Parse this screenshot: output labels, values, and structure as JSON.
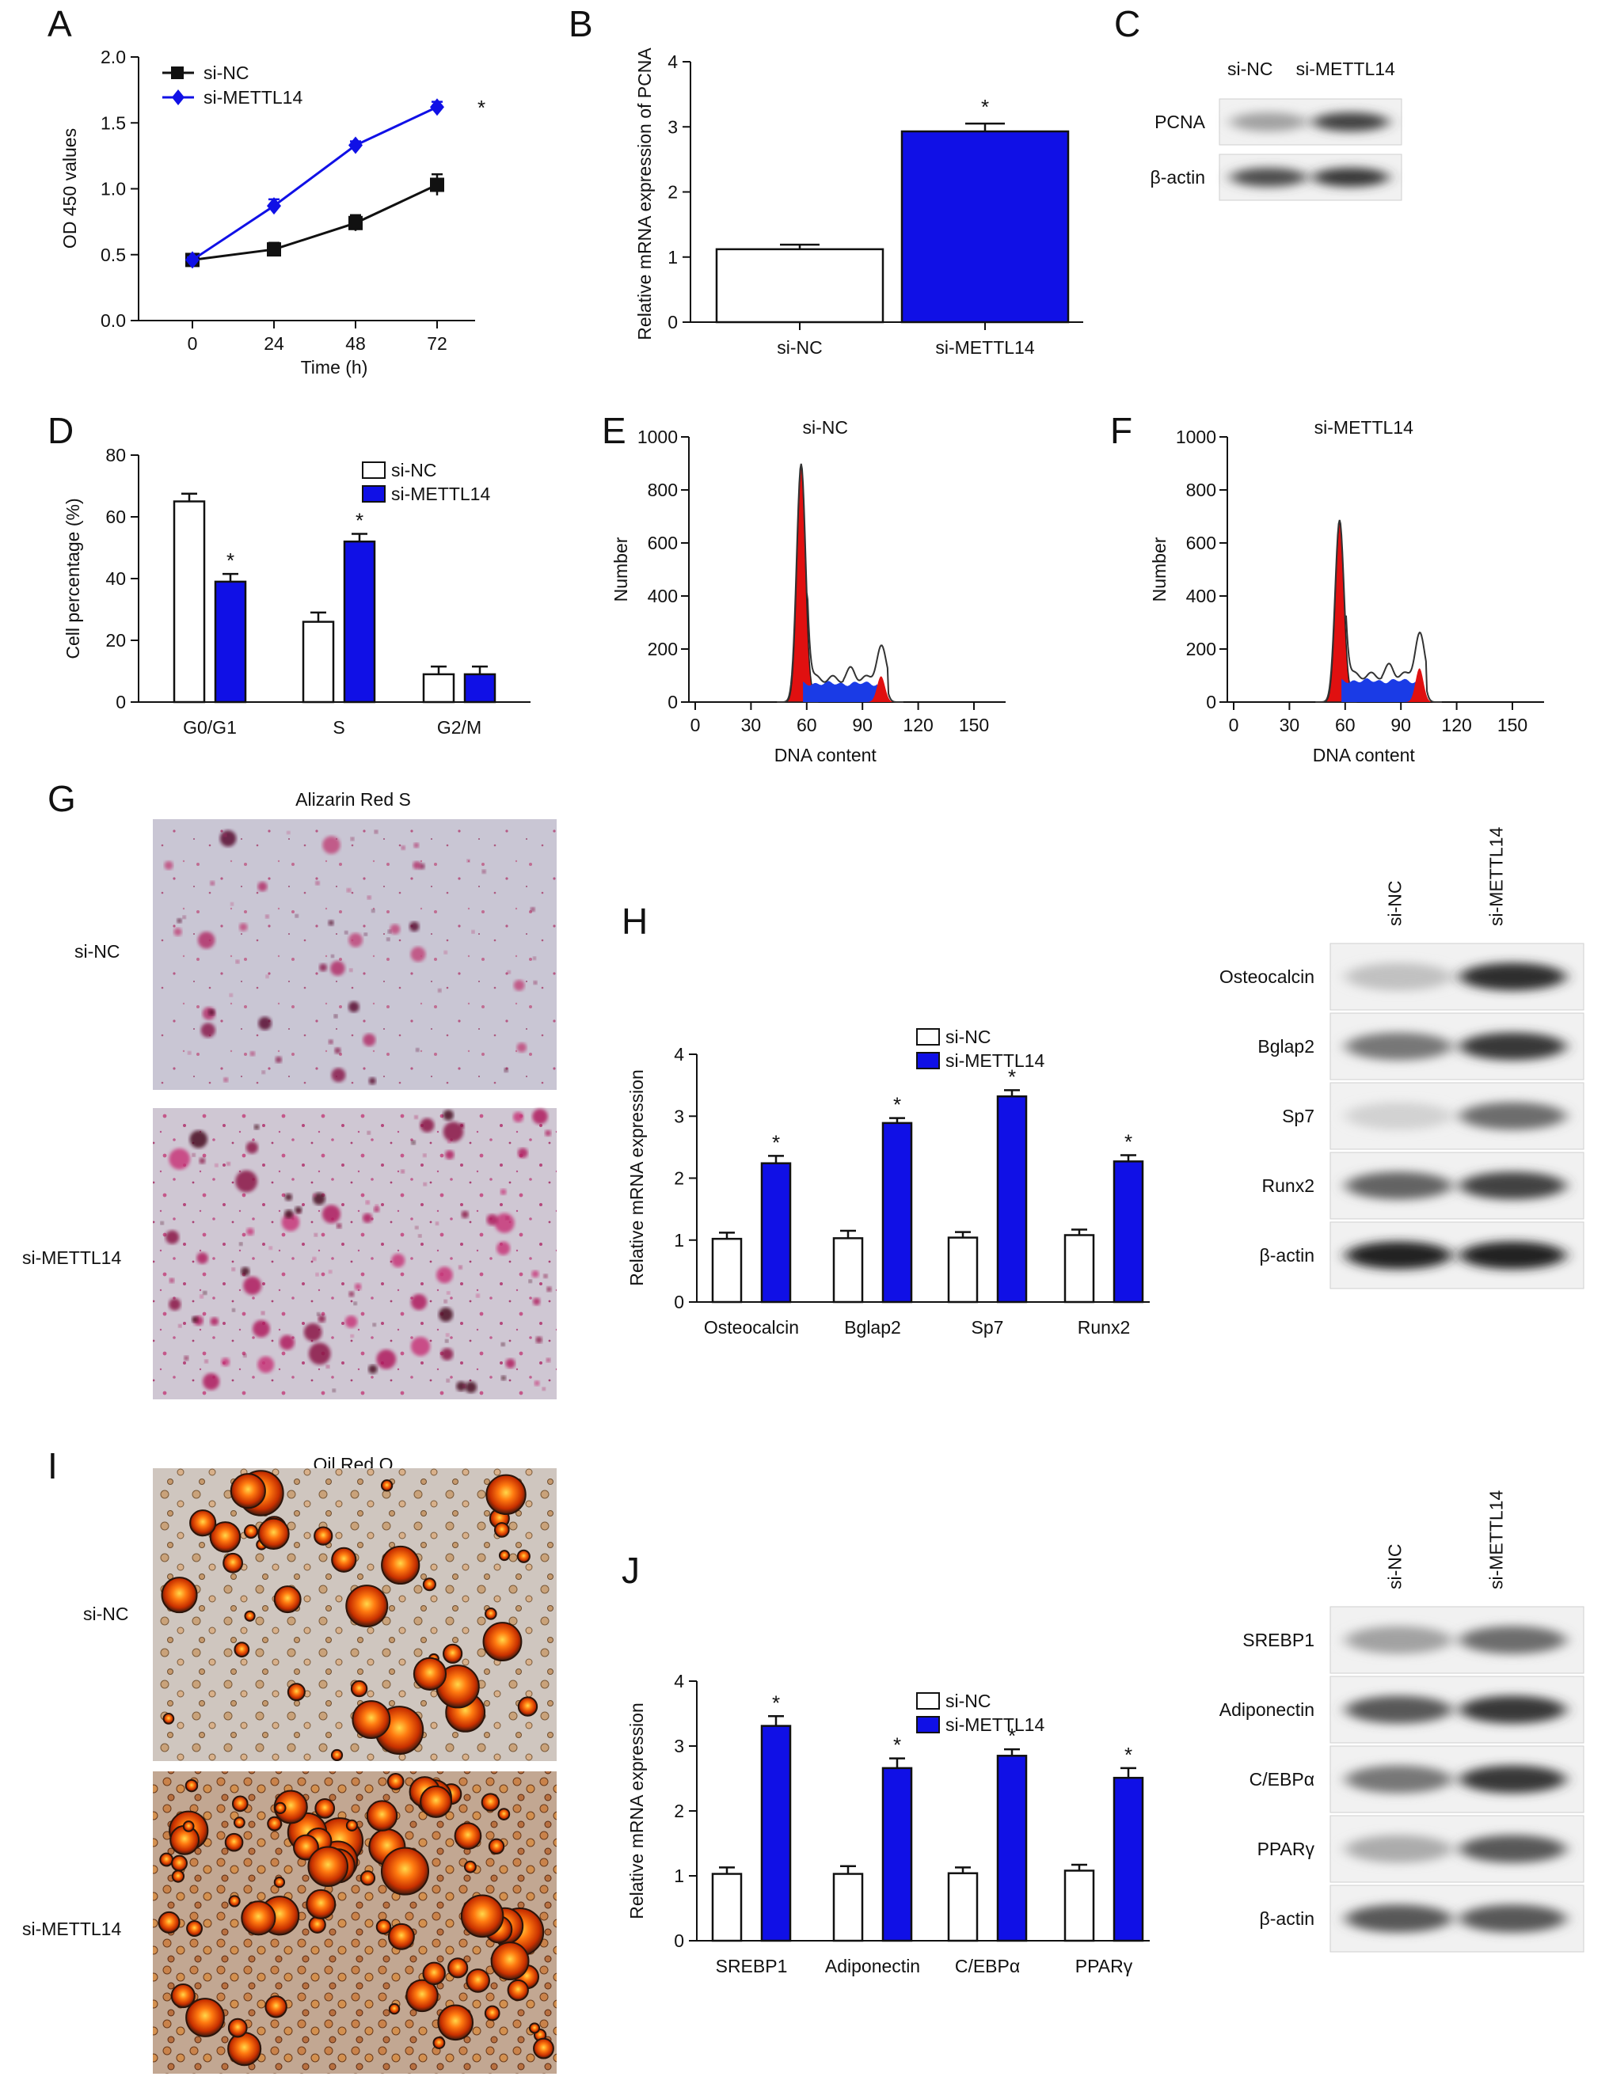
{
  "panels": {
    "A": "A",
    "B": "B",
    "C": "C",
    "D": "D",
    "E": "E",
    "F": "F",
    "G": "G",
    "H": "H",
    "I": "I",
    "J": "J"
  },
  "colors": {
    "si_nc_line": "#111111",
    "si_mettl14": "#1010e6",
    "histogram_red": "#e01010",
    "histogram_blue": "#1a3be6"
  },
  "chart_data": [
    {
      "id": "A",
      "type": "line",
      "x": [
        0,
        24,
        48,
        72
      ],
      "xticks": [
        "0",
        "24",
        "48",
        "72"
      ],
      "yticks": [
        "0.0",
        "0.5",
        "1.0",
        "1.5",
        "2.0"
      ],
      "xlabel": "Time (h)",
      "ylabel": "OD 450 values",
      "ylim": [
        0,
        2.0
      ],
      "series": [
        {
          "name": "si-NC",
          "values": [
            0.46,
            0.54,
            0.74,
            1.03
          ],
          "err": [
            0.02,
            0.05,
            0.06,
            0.08
          ],
          "marker": "square",
          "color": "#111111"
        },
        {
          "name": "si-METTL14",
          "values": [
            0.46,
            0.87,
            1.33,
            1.62
          ],
          "err": [
            0.02,
            0.05,
            0.03,
            0.04
          ],
          "marker": "diamond",
          "color": "#1010e6"
        }
      ],
      "annotation": "*"
    },
    {
      "id": "B",
      "type": "bar",
      "categories": [
        "si-NC",
        "si-METTL14"
      ],
      "values": [
        1.12,
        2.93
      ],
      "err": [
        0.07,
        0.12
      ],
      "ylabel": "Relative mRNA expression of PCNA",
      "ylim": [
        0,
        4
      ],
      "yticks": [
        "0",
        "1",
        "2",
        "3",
        "4"
      ],
      "annotation": "*"
    },
    {
      "id": "D",
      "type": "bar",
      "categories": [
        "G0/G1",
        "S",
        "G2/M"
      ],
      "series": [
        {
          "name": "si-NC",
          "values": [
            65,
            26,
            9
          ],
          "err": [
            2.5,
            3,
            2.5
          ]
        },
        {
          "name": "si-METTL14",
          "values": [
            39,
            52,
            9
          ],
          "err": [
            2.5,
            2.5,
            2.5
          ]
        }
      ],
      "ylabel": "Cell percentage (%)",
      "ylim": [
        0,
        80
      ],
      "yticks": [
        "0",
        "20",
        "40",
        "60",
        "80"
      ],
      "stars": [
        "*",
        "*",
        ""
      ]
    },
    {
      "id": "E",
      "type": "area",
      "title": "si-NC",
      "xlabel": "DNA content",
      "ylabel": "Number",
      "xlim": [
        0,
        160
      ],
      "ylim": [
        0,
        1000
      ],
      "xticks": [
        "0",
        "30",
        "60",
        "90",
        "120",
        "150"
      ],
      "yticks": [
        "0",
        "200",
        "400",
        "600",
        "800",
        "1000"
      ],
      "g1_peak": {
        "x": 57,
        "y": 890
      },
      "s_phase_level": 70,
      "g2_peak": {
        "x": 100,
        "y": 130
      }
    },
    {
      "id": "F",
      "type": "area",
      "title": "si-METTL14",
      "xlabel": "DNA content",
      "ylabel": "Number",
      "xlim": [
        0,
        160
      ],
      "ylim": [
        0,
        1000
      ],
      "xticks": [
        "0",
        "30",
        "60",
        "90",
        "120",
        "150"
      ],
      "yticks": [
        "0",
        "200",
        "400",
        "600",
        "800",
        "1000"
      ],
      "g1_peak": {
        "x": 57,
        "y": 680
      },
      "s_phase_level": 80,
      "g2_peak": {
        "x": 100,
        "y": 170
      }
    },
    {
      "id": "H",
      "type": "bar",
      "categories": [
        "Osteocalcin",
        "Bglap2",
        "Sp7",
        "Runx2"
      ],
      "series": [
        {
          "name": "si-NC",
          "values": [
            1.02,
            1.03,
            1.04,
            1.08
          ],
          "err": [
            0.1,
            0.12,
            0.09,
            0.09
          ]
        },
        {
          "name": "si-METTL14",
          "values": [
            2.24,
            2.89,
            3.32,
            2.27
          ],
          "err": [
            0.12,
            0.08,
            0.1,
            0.1
          ]
        }
      ],
      "ylabel": "Relative mRNA expression",
      "ylim": [
        0,
        4
      ],
      "yticks": [
        "0",
        "1",
        "2",
        "3",
        "4"
      ],
      "stars": [
        "*",
        "*",
        "*",
        "*"
      ]
    },
    {
      "id": "J",
      "type": "bar",
      "categories": [
        "SREBP1",
        "Adiponectin",
        "C/EBPα",
        "PPARγ"
      ],
      "series": [
        {
          "name": "si-NC",
          "values": [
            1.03,
            1.03,
            1.04,
            1.08
          ],
          "err": [
            0.1,
            0.12,
            0.09,
            0.09
          ]
        },
        {
          "name": "si-METTL14",
          "values": [
            3.31,
            2.66,
            2.85,
            2.51
          ],
          "err": [
            0.15,
            0.15,
            0.1,
            0.15
          ]
        }
      ],
      "ylabel": "Relative mRNA expression",
      "ylim": [
        0,
        4
      ],
      "yticks": [
        "0",
        "1",
        "2",
        "3",
        "4"
      ],
      "stars": [
        "*",
        "*",
        "*",
        "*"
      ]
    }
  ],
  "blot_C": {
    "lanes": [
      "si-NC",
      "si-METTL14"
    ],
    "rows": [
      {
        "label": "PCNA",
        "intensity": [
          0.35,
          0.8
        ]
      },
      {
        "label": "β-actin",
        "intensity": [
          0.75,
          0.85
        ]
      }
    ]
  },
  "blot_H": {
    "lanes": [
      "si-NC",
      "si-METTL14"
    ],
    "rows": [
      {
        "label": "Osteocalcin",
        "intensity": [
          0.2,
          0.9
        ]
      },
      {
        "label": "Bglap2",
        "intensity": [
          0.55,
          0.85
        ]
      },
      {
        "label": "Sp7",
        "intensity": [
          0.12,
          0.6
        ]
      },
      {
        "label": "Runx2",
        "intensity": [
          0.65,
          0.8
        ]
      },
      {
        "label": "β-actin",
        "intensity": [
          0.95,
          0.95
        ]
      }
    ]
  },
  "blot_J": {
    "lanes": [
      "si-NC",
      "si-METTL14"
    ],
    "rows": [
      {
        "label": "SREBP1",
        "intensity": [
          0.35,
          0.6
        ]
      },
      {
        "label": "Adiponectin",
        "intensity": [
          0.7,
          0.85
        ]
      },
      {
        "label": "C/EBPα",
        "intensity": [
          0.55,
          0.85
        ]
      },
      {
        "label": "PPARγ",
        "intensity": [
          0.3,
          0.7
        ]
      },
      {
        "label": "β-actin",
        "intensity": [
          0.7,
          0.7
        ]
      }
    ]
  },
  "stain_G": {
    "title": "Alizarin Red S",
    "rows": [
      "si-NC",
      "si-METTL14"
    ]
  },
  "stain_I": {
    "title": "Oil Red O",
    "rows": [
      "si-NC",
      "si-METTL14"
    ]
  }
}
